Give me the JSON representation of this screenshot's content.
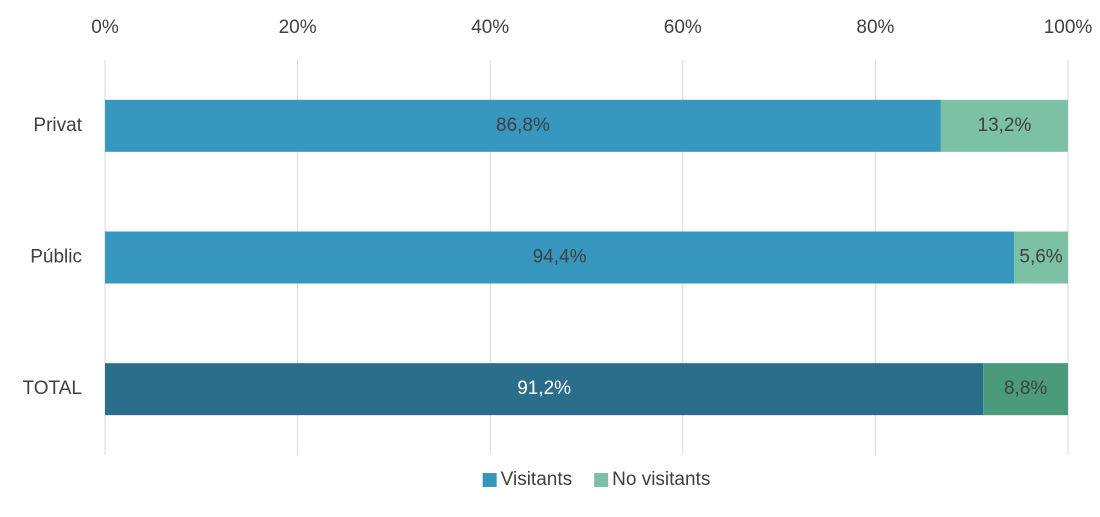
{
  "chart_data": {
    "type": "stacked_barh",
    "categories": [
      "Privat",
      "Públic",
      "TOTAL"
    ],
    "series": [
      {
        "name": "Visitants",
        "color": "#3797bf",
        "colors": [
          "#3797bf",
          "#3797bf",
          "#2a6e8b"
        ],
        "values": [
          86.8,
          94.4,
          91.2
        ],
        "value_labels": [
          "86,8%",
          "94,4%",
          "91,2%"
        ]
      },
      {
        "name": "No visitants",
        "color": "#7cc0a6",
        "colors": [
          "#7cc0a6",
          "#7cc0a6",
          "#4a9a7b"
        ],
        "values": [
          13.2,
          5.6,
          8.8
        ],
        "value_labels": [
          "13,2%",
          "5,6%",
          "8,8%"
        ]
      }
    ],
    "xlim": [
      0,
      100
    ],
    "xticks": [
      {
        "value": 0,
        "label": "0%"
      },
      {
        "value": 20,
        "label": "20%"
      },
      {
        "value": 40,
        "label": "40%"
      },
      {
        "value": 60,
        "label": "60%"
      },
      {
        "value": 80,
        "label": "80%"
      },
      {
        "value": 100,
        "label": "100%"
      }
    ],
    "grid": true,
    "legend": "bottom"
  }
}
